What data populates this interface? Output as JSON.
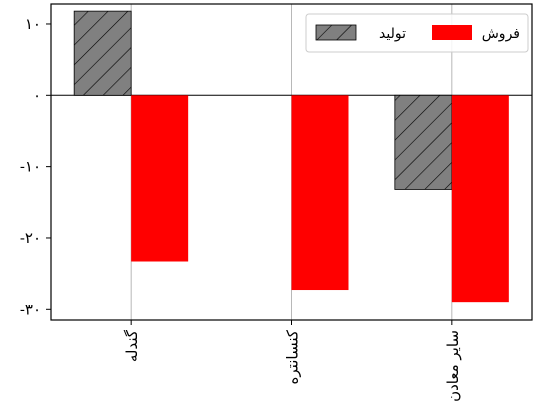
{
  "chart_data": {
    "type": "bar",
    "categories": [
      "گندله",
      "کنسانتره",
      "سایر معادن"
    ],
    "y_tick_labels": [
      "۱۰",
      "۰",
      "-۱۰",
      "-۲۰",
      "-۳۰"
    ],
    "y_tick_values": [
      10,
      0,
      -10,
      -20,
      -30
    ],
    "ylim": [
      -31.5,
      12.8
    ],
    "grid": "vertical",
    "legend_position": "top-right",
    "series": [
      {
        "name": "تولید",
        "values": [
          11.8,
          0,
          -13.2
        ],
        "color": "#808080",
        "hatch": "diagonal"
      },
      {
        "name": "فروش",
        "values": [
          -23.3,
          -27.3,
          -29.0
        ],
        "color": "#ff0000",
        "hatch": "none"
      }
    ]
  }
}
